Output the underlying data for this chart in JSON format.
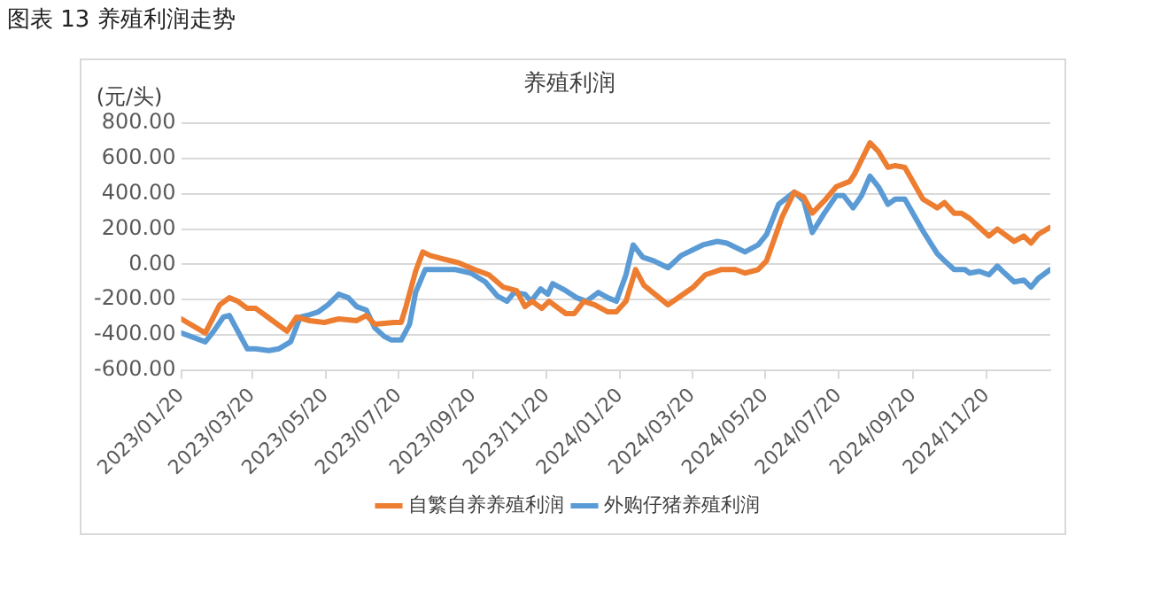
{
  "chart_data": {
    "type": "line",
    "title": "图表 13 养殖利润走势",
    "subtitle": "养殖利润",
    "ylabel": "(元/头)",
    "xlim": [
      "2023-01-20",
      "2025-01-12"
    ],
    "xticks": [
      {
        "value": "2023-01-20",
        "label": "2023/01/20"
      },
      {
        "value": "2023-03-20",
        "label": "2023/03/20"
      },
      {
        "value": "2023-05-20",
        "label": "2023/05/20"
      },
      {
        "value": "2023-07-20",
        "label": "2023/07/20"
      },
      {
        "value": "2023-09-20",
        "label": "2023/09/20"
      },
      {
        "value": "2023-11-20",
        "label": "2023/11/20"
      },
      {
        "value": "2024-01-20",
        "label": "2024/01/20"
      },
      {
        "value": "2024-03-20",
        "label": "2024/03/20"
      },
      {
        "value": "2024-05-20",
        "label": "2024/05/20"
      },
      {
        "value": "2024-07-20",
        "label": "2024/07/20"
      },
      {
        "value": "2024-09-20",
        "label": "2024/09/20"
      },
      {
        "value": "2024-11-20",
        "label": "2024/11/20"
      }
    ],
    "ylim": [
      -600,
      800
    ],
    "yticks": [
      {
        "value": -600,
        "label": "-600.00"
      },
      {
        "value": -400,
        "label": "-400.00"
      },
      {
        "value": -200,
        "label": "-200.00"
      },
      {
        "value": 0,
        "label": "0.00"
      },
      {
        "value": 200,
        "label": "200.00"
      },
      {
        "value": 400,
        "label": "400.00"
      },
      {
        "value": 600,
        "label": "600.00"
      },
      {
        "value": 800,
        "label": "800.00"
      }
    ],
    "grid": "y",
    "legend": "bottom",
    "marker": "none",
    "line_style": "solid",
    "series": [
      {
        "name": "自繁自养养殖利润",
        "color": "#ed7d31",
        "x": [
          "2023-01-20",
          "2023-02-09",
          "2023-02-21",
          "2023-03-01",
          "2023-03-08",
          "2023-03-16",
          "2023-03-23",
          "2023-03-31",
          "2023-04-08",
          "2023-04-18",
          "2023-04-26",
          "2023-05-07",
          "2023-05-19",
          "2023-05-31",
          "2023-06-15",
          "2023-06-23",
          "2023-06-30",
          "2023-07-16",
          "2023-07-22",
          "2023-07-26",
          "2023-08-03",
          "2023-08-09",
          "2023-08-15",
          "2023-08-26",
          "2023-09-07",
          "2023-09-21",
          "2023-10-03",
          "2023-10-15",
          "2023-10-26",
          "2023-11-02",
          "2023-11-08",
          "2023-11-16",
          "2023-11-22",
          "2023-12-06",
          "2023-12-13",
          "2023-12-21",
          "2023-12-30",
          "2024-01-10",
          "2024-01-17",
          "2024-01-25",
          "2024-02-02",
          "2024-02-09",
          "2024-02-29",
          "2024-03-21",
          "2024-03-31",
          "2024-04-13",
          "2024-04-25",
          "2024-05-03",
          "2024-05-14",
          "2024-05-21",
          "2024-06-03",
          "2024-06-13",
          "2024-06-21",
          "2024-06-28",
          "2024-07-08",
          "2024-07-18",
          "2024-07-29",
          "2024-08-02",
          "2024-08-15",
          "2024-08-22",
          "2024-08-30",
          "2024-09-05",
          "2024-09-13",
          "2024-09-28",
          "2024-10-10",
          "2024-10-16",
          "2024-10-24",
          "2024-10-30",
          "2024-11-06",
          "2024-11-22",
          "2024-11-29",
          "2024-12-13",
          "2024-12-21",
          "2024-12-27",
          "2025-01-02",
          "2025-01-12"
        ],
        "values": [
          -310,
          -390,
          -230,
          -190,
          -210,
          -250,
          -250,
          -290,
          -330,
          -380,
          -300,
          -320,
          -330,
          -310,
          -320,
          -290,
          -340,
          -330,
          -330,
          -240,
          -40,
          70,
          50,
          30,
          10,
          -30,
          -60,
          -130,
          -150,
          -240,
          -210,
          -250,
          -210,
          -280,
          -280,
          -210,
          -230,
          -270,
          -270,
          -210,
          -30,
          -120,
          -230,
          -130,
          -60,
          -30,
          -30,
          -50,
          -30,
          20,
          270,
          410,
          380,
          290,
          360,
          440,
          470,
          510,
          690,
          640,
          550,
          560,
          550,
          370,
          320,
          350,
          290,
          290,
          260,
          160,
          200,
          130,
          160,
          120,
          170,
          210
        ]
      },
      {
        "name": "外购仔猪养殖利润",
        "color": "#5b9bd5",
        "x": [
          "2023-01-20",
          "2023-02-09",
          "2023-02-16",
          "2023-02-24",
          "2023-03-01",
          "2023-03-16",
          "2023-03-23",
          "2023-04-03",
          "2023-04-11",
          "2023-04-21",
          "2023-04-29",
          "2023-05-05",
          "2023-05-14",
          "2023-05-22",
          "2023-05-31",
          "2023-06-08",
          "2023-06-15",
          "2023-06-23",
          "2023-06-30",
          "2023-07-08",
          "2023-07-14",
          "2023-07-22",
          "2023-07-29",
          "2023-08-03",
          "2023-08-11",
          "2023-08-21",
          "2023-09-05",
          "2023-09-18",
          "2023-09-30",
          "2023-10-10",
          "2023-10-18",
          "2023-10-24",
          "2023-11-02",
          "2023-11-07",
          "2023-11-15",
          "2023-11-21",
          "2023-11-25",
          "2023-12-06",
          "2023-12-15",
          "2023-12-23",
          "2024-01-02",
          "2024-01-10",
          "2024-01-17",
          "2024-01-25",
          "2024-01-31",
          "2024-02-08",
          "2024-02-17",
          "2024-02-29",
          "2024-03-11",
          "2024-03-29",
          "2024-04-10",
          "2024-04-18",
          "2024-05-03",
          "2024-05-14",
          "2024-05-21",
          "2024-05-31",
          "2024-06-13",
          "2024-06-21",
          "2024-06-28",
          "2024-07-08",
          "2024-07-18",
          "2024-07-24",
          "2024-08-01",
          "2024-08-08",
          "2024-08-15",
          "2024-08-22",
          "2024-08-30",
          "2024-09-05",
          "2024-09-13",
          "2024-09-28",
          "2024-10-10",
          "2024-10-16",
          "2024-10-24",
          "2024-11-02",
          "2024-11-06",
          "2024-11-14",
          "2024-11-22",
          "2024-11-29",
          "2024-12-05",
          "2024-12-13",
          "2024-12-21",
          "2024-12-27",
          "2025-01-02",
          "2025-01-12"
        ],
        "values": [
          -390,
          -440,
          -380,
          -300,
          -290,
          -480,
          -480,
          -490,
          -480,
          -440,
          -300,
          -290,
          -270,
          -230,
          -170,
          -190,
          -240,
          -260,
          -360,
          -410,
          -430,
          -430,
          -340,
          -160,
          -30,
          -30,
          -30,
          -50,
          -100,
          -180,
          -210,
          -160,
          -170,
          -210,
          -140,
          -170,
          -110,
          -150,
          -190,
          -210,
          -160,
          -190,
          -210,
          -60,
          110,
          40,
          20,
          -20,
          50,
          110,
          130,
          120,
          70,
          110,
          170,
          340,
          410,
          360,
          180,
          290,
          390,
          390,
          320,
          390,
          500,
          440,
          340,
          370,
          370,
          190,
          60,
          20,
          -30,
          -30,
          -50,
          -40,
          -60,
          -10,
          -50,
          -100,
          -90,
          -130,
          -80,
          -30
        ]
      }
    ]
  }
}
